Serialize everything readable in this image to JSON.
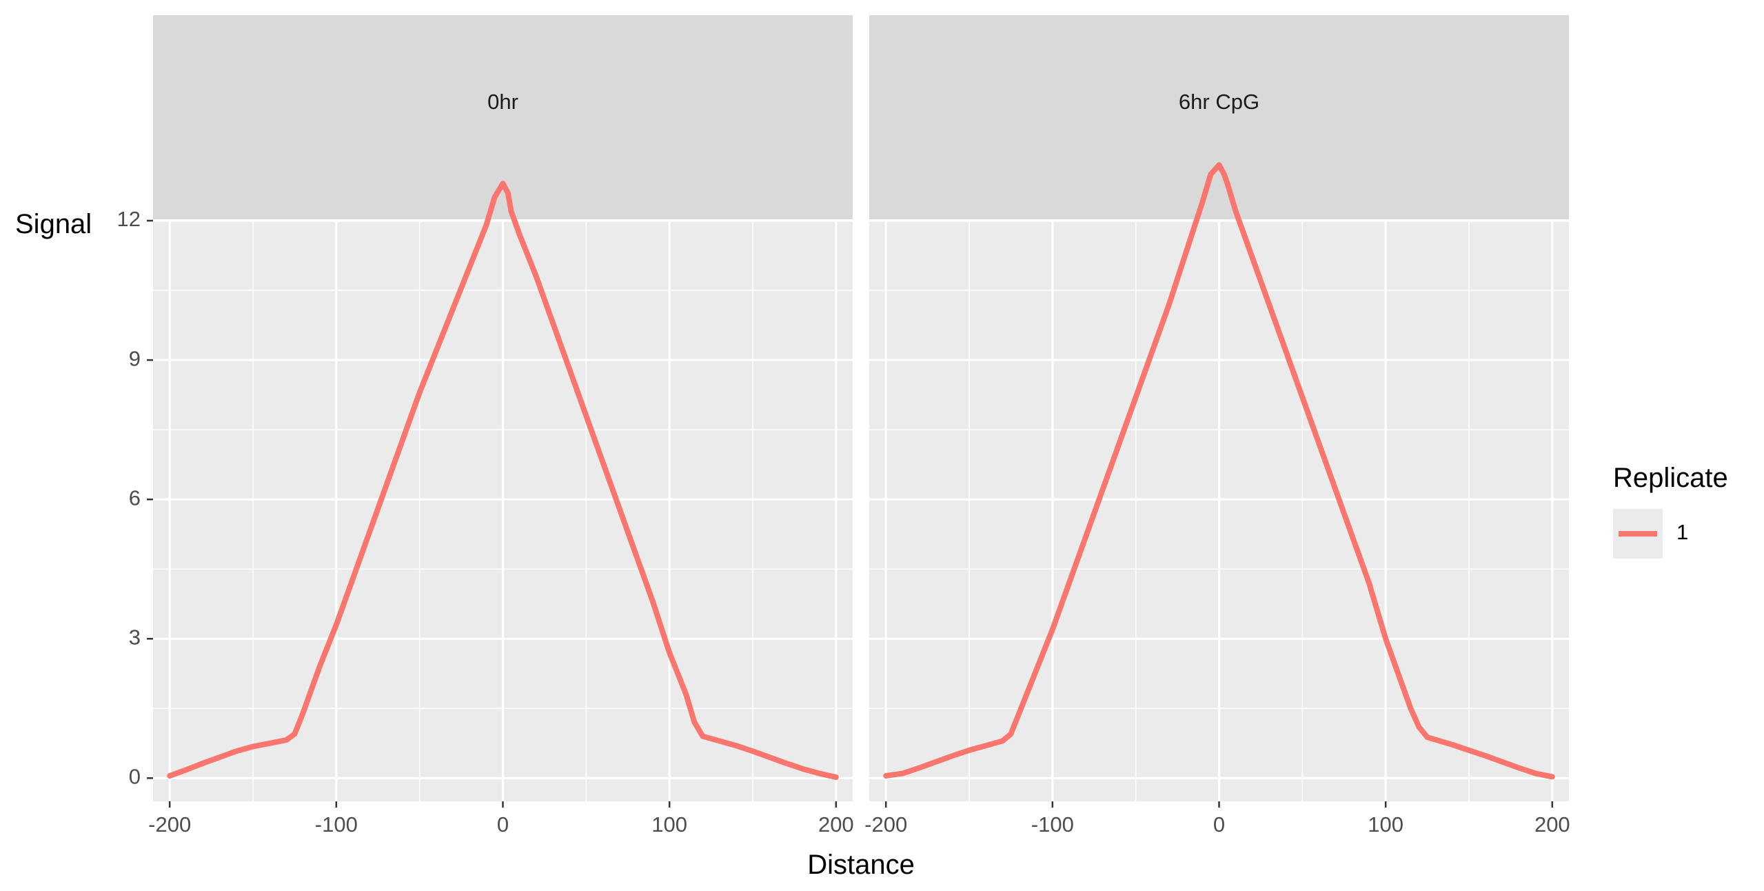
{
  "chart_data": {
    "type": "line",
    "facets": [
      "0hr",
      "6hr CpG"
    ],
    "xlabel": "Distance",
    "ylabel": "Signal",
    "xlim": [
      -210,
      210
    ],
    "ylim": [
      -0.5,
      12
    ],
    "xticks": [
      -200,
      -100,
      0,
      100,
      200
    ],
    "yticks": [
      0,
      3,
      6,
      9,
      12
    ],
    "grid": true,
    "legend": {
      "title": "Replicate",
      "position": "right",
      "entries": [
        "1"
      ]
    },
    "colors": {
      "series": "#f8766d",
      "panel": "#ebebeb",
      "strip": "#d9d9d9",
      "grid": "#ffffff",
      "axis_text": "#4d4d4d"
    },
    "series": [
      {
        "facet": "0hr",
        "name": "1",
        "x": [
          -200,
          -190,
          -180,
          -170,
          -160,
          -150,
          -140,
          -130,
          -125,
          -120,
          -110,
          -100,
          -90,
          -80,
          -70,
          -60,
          -50,
          -40,
          -30,
          -20,
          -10,
          -5,
          0,
          3,
          5,
          10,
          20,
          30,
          40,
          50,
          60,
          70,
          80,
          90,
          100,
          110,
          115,
          120,
          125,
          140,
          150,
          160,
          170,
          180,
          190,
          200
        ],
        "y": [
          0.05,
          0.18,
          0.32,
          0.45,
          0.58,
          0.68,
          0.75,
          0.82,
          0.95,
          1.4,
          2.4,
          3.3,
          4.3,
          5.3,
          6.3,
          7.3,
          8.3,
          9.2,
          10.1,
          11.0,
          11.9,
          12.5,
          12.8,
          12.6,
          12.2,
          11.7,
          10.8,
          9.8,
          8.8,
          7.8,
          6.8,
          5.8,
          4.8,
          3.8,
          2.7,
          1.8,
          1.2,
          0.9,
          0.85,
          0.7,
          0.58,
          0.45,
          0.32,
          0.2,
          0.1,
          0.02
        ]
      },
      {
        "facet": "6hr CpG",
        "name": "1",
        "x": [
          -200,
          -190,
          -180,
          -170,
          -160,
          -150,
          -140,
          -130,
          -125,
          -120,
          -110,
          -100,
          -90,
          -80,
          -70,
          -60,
          -50,
          -40,
          -30,
          -20,
          -10,
          -5,
          0,
          3,
          5,
          10,
          20,
          30,
          40,
          50,
          60,
          70,
          80,
          90,
          100,
          110,
          115,
          120,
          125,
          140,
          150,
          160,
          170,
          180,
          190,
          200
        ],
        "y": [
          0.05,
          0.1,
          0.22,
          0.35,
          0.48,
          0.6,
          0.7,
          0.8,
          0.95,
          1.4,
          2.3,
          3.2,
          4.2,
          5.2,
          6.2,
          7.2,
          8.2,
          9.2,
          10.2,
          11.3,
          12.4,
          13.0,
          13.2,
          13.0,
          12.8,
          12.2,
          11.2,
          10.2,
          9.2,
          8.2,
          7.2,
          6.2,
          5.2,
          4.2,
          3.0,
          2.0,
          1.5,
          1.1,
          0.88,
          0.72,
          0.6,
          0.48,
          0.35,
          0.22,
          0.1,
          0.03
        ]
      }
    ]
  }
}
